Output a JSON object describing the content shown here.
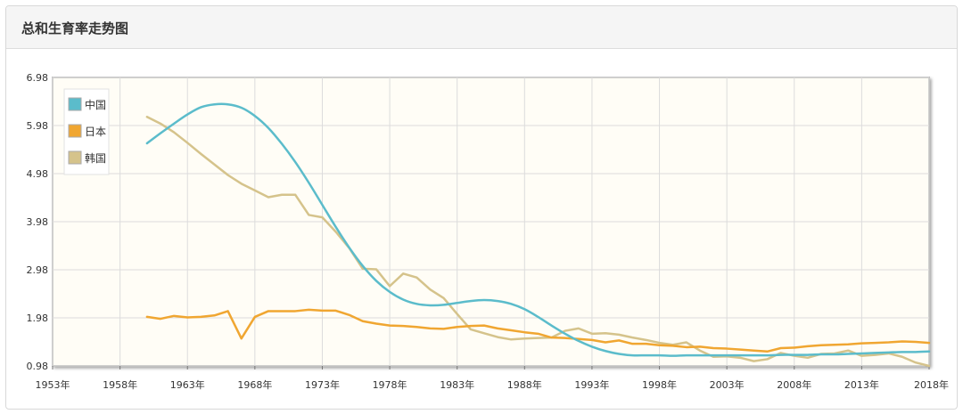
{
  "panel": {
    "title": "总和生育率走势图"
  },
  "chart_data": {
    "type": "line",
    "title": "",
    "xlabel": "",
    "ylabel": "",
    "xlim": [
      1953,
      2018
    ],
    "ylim": [
      0.98,
      6.98
    ],
    "x_ticks": [
      1953,
      1958,
      1963,
      1968,
      1973,
      1978,
      1983,
      1988,
      1993,
      1998,
      2003,
      2008,
      2013,
      2018
    ],
    "x_tick_labels": [
      "1953年",
      "1958年",
      "1963年",
      "1968年",
      "1973年",
      "1978年",
      "1983年",
      "1988年",
      "1993年",
      "1998年",
      "2003年",
      "2008年",
      "2013年",
      "2018年"
    ],
    "y_ticks": [
      0.98,
      1.98,
      2.98,
      3.98,
      4.98,
      5.98,
      6.98
    ],
    "y_tick_labels": [
      "0.98",
      "1.98",
      "2.98",
      "3.98",
      "4.98",
      "5.98",
      "6.98"
    ],
    "grid": true,
    "legend": "top-left",
    "series": [
      {
        "name": "中国",
        "color": "#5bbccb",
        "smooth": true,
        "x": [
          1960,
          1961,
          1962,
          1963,
          1964,
          1965,
          1966,
          1967,
          1968,
          1969,
          1970,
          1971,
          1972,
          1973,
          1974,
          1975,
          1976,
          1977,
          1978,
          1979,
          1980,
          1981,
          1982,
          1983,
          1984,
          1985,
          1986,
          1987,
          1988,
          1989,
          1990,
          1991,
          1992,
          1993,
          1994,
          1995,
          1996,
          1997,
          1998,
          1999,
          2000,
          2001,
          2002,
          2003,
          2004,
          2005,
          2006,
          2007,
          2008,
          2009,
          2010,
          2011,
          2012,
          2013,
          2014,
          2015,
          2016,
          2017,
          2018
        ],
        "y": [
          5.61,
          5.82,
          6.02,
          6.21,
          6.36,
          6.42,
          6.42,
          6.35,
          6.18,
          5.93,
          5.6,
          5.22,
          4.79,
          4.33,
          3.87,
          3.44,
          3.06,
          2.75,
          2.52,
          2.36,
          2.27,
          2.24,
          2.25,
          2.29,
          2.33,
          2.35,
          2.33,
          2.27,
          2.16,
          2.0,
          1.82,
          1.65,
          1.5,
          1.38,
          1.29,
          1.23,
          1.2,
          1.2,
          1.2,
          1.19,
          1.2,
          1.2,
          1.2,
          1.2,
          1.2,
          1.2,
          1.2,
          1.21,
          1.21,
          1.21,
          1.22,
          1.22,
          1.23,
          1.24,
          1.25,
          1.26,
          1.27,
          1.27,
          1.28
        ]
      },
      {
        "name": "日本",
        "color": "#f0a631",
        "smooth": false,
        "x": [
          1960,
          1961,
          1962,
          1963,
          1964,
          1965,
          1966,
          1967,
          1968,
          1969,
          1970,
          1971,
          1972,
          1973,
          1974,
          1975,
          1976,
          1977,
          1978,
          1979,
          1980,
          1981,
          1982,
          1983,
          1984,
          1985,
          1986,
          1987,
          1988,
          1989,
          1990,
          1991,
          1992,
          1993,
          1994,
          1995,
          1996,
          1997,
          1998,
          1999,
          2000,
          2001,
          2002,
          2003,
          2004,
          2005,
          2006,
          2007,
          2008,
          2009,
          2010,
          2011,
          2012,
          2013,
          2014,
          2015,
          2016,
          2017,
          2018
        ],
        "y": [
          2.0,
          1.96,
          2.02,
          1.99,
          2.0,
          2.03,
          2.12,
          1.55,
          2.0,
          2.12,
          2.12,
          2.12,
          2.15,
          2.13,
          2.13,
          2.04,
          1.91,
          1.86,
          1.82,
          1.81,
          1.79,
          1.76,
          1.75,
          1.79,
          1.81,
          1.82,
          1.76,
          1.72,
          1.68,
          1.65,
          1.57,
          1.56,
          1.54,
          1.52,
          1.47,
          1.51,
          1.44,
          1.44,
          1.41,
          1.4,
          1.37,
          1.38,
          1.35,
          1.34,
          1.32,
          1.3,
          1.28,
          1.35,
          1.36,
          1.39,
          1.41,
          1.42,
          1.43,
          1.45,
          1.46,
          1.47,
          1.49,
          1.48,
          1.46
        ]
      },
      {
        "name": "韩国",
        "color": "#d5c38b",
        "smooth": false,
        "x": [
          1960,
          1961,
          1962,
          1963,
          1964,
          1965,
          1966,
          1967,
          1968,
          1969,
          1970,
          1971,
          1972,
          1973,
          1974,
          1975,
          1976,
          1977,
          1978,
          1979,
          1980,
          1981,
          1982,
          1983,
          1984,
          1985,
          1986,
          1987,
          1988,
          1989,
          1990,
          1991,
          1992,
          1993,
          1994,
          1995,
          1996,
          1997,
          1998,
          1999,
          2000,
          2001,
          2002,
          2003,
          2004,
          2005,
          2006,
          2007,
          2008,
          2009,
          2010,
          2011,
          2012,
          2013,
          2014,
          2015,
          2016,
          2017,
          2018
        ],
        "y": [
          6.16,
          6.02,
          5.84,
          5.62,
          5.39,
          5.17,
          4.95,
          4.77,
          4.63,
          4.49,
          4.54,
          4.54,
          4.12,
          4.07,
          3.77,
          3.43,
          3.0,
          2.99,
          2.64,
          2.9,
          2.82,
          2.57,
          2.39,
          2.06,
          1.74,
          1.66,
          1.58,
          1.53,
          1.55,
          1.56,
          1.57,
          1.71,
          1.76,
          1.65,
          1.66,
          1.63,
          1.57,
          1.52,
          1.46,
          1.42,
          1.47,
          1.3,
          1.17,
          1.18,
          1.15,
          1.08,
          1.12,
          1.25,
          1.19,
          1.15,
          1.23,
          1.24,
          1.3,
          1.19,
          1.21,
          1.24,
          1.17,
          1.05,
          0.98
        ]
      }
    ]
  }
}
